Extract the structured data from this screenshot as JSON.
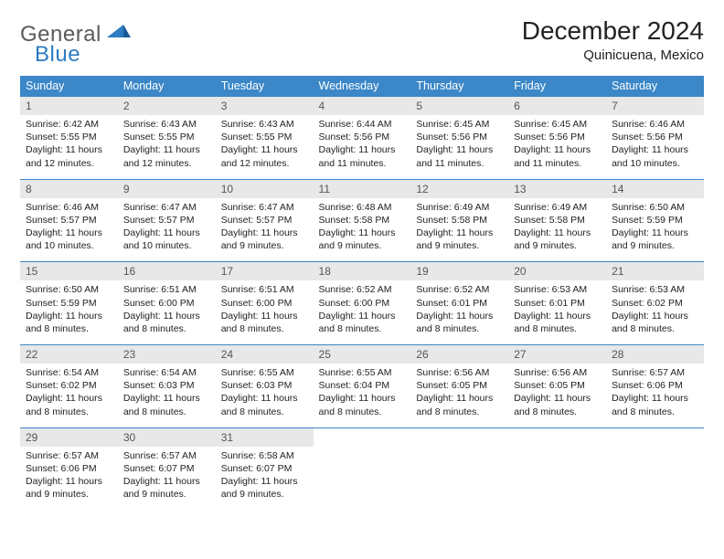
{
  "logo": {
    "text1": "General",
    "text2": "Blue"
  },
  "title": "December 2024",
  "location": "Quinicuena, Mexico",
  "colors": {
    "header_bg": "#3b87c8",
    "header_text": "#ffffff",
    "daynum_bg": "#e8e8e8",
    "daynum_text": "#555555",
    "row_border": "#3b87c8",
    "logo_gray": "#5a5a5a",
    "logo_blue": "#2d7bc0"
  },
  "day_headers": [
    "Sunday",
    "Monday",
    "Tuesday",
    "Wednesday",
    "Thursday",
    "Friday",
    "Saturday"
  ],
  "weeks": [
    [
      {
        "n": "1",
        "sr": "Sunrise: 6:42 AM",
        "ss": "Sunset: 5:55 PM",
        "d1": "Daylight: 11 hours",
        "d2": "and 12 minutes."
      },
      {
        "n": "2",
        "sr": "Sunrise: 6:43 AM",
        "ss": "Sunset: 5:55 PM",
        "d1": "Daylight: 11 hours",
        "d2": "and 12 minutes."
      },
      {
        "n": "3",
        "sr": "Sunrise: 6:43 AM",
        "ss": "Sunset: 5:55 PM",
        "d1": "Daylight: 11 hours",
        "d2": "and 12 minutes."
      },
      {
        "n": "4",
        "sr": "Sunrise: 6:44 AM",
        "ss": "Sunset: 5:56 PM",
        "d1": "Daylight: 11 hours",
        "d2": "and 11 minutes."
      },
      {
        "n": "5",
        "sr": "Sunrise: 6:45 AM",
        "ss": "Sunset: 5:56 PM",
        "d1": "Daylight: 11 hours",
        "d2": "and 11 minutes."
      },
      {
        "n": "6",
        "sr": "Sunrise: 6:45 AM",
        "ss": "Sunset: 5:56 PM",
        "d1": "Daylight: 11 hours",
        "d2": "and 11 minutes."
      },
      {
        "n": "7",
        "sr": "Sunrise: 6:46 AM",
        "ss": "Sunset: 5:56 PM",
        "d1": "Daylight: 11 hours",
        "d2": "and 10 minutes."
      }
    ],
    [
      {
        "n": "8",
        "sr": "Sunrise: 6:46 AM",
        "ss": "Sunset: 5:57 PM",
        "d1": "Daylight: 11 hours",
        "d2": "and 10 minutes."
      },
      {
        "n": "9",
        "sr": "Sunrise: 6:47 AM",
        "ss": "Sunset: 5:57 PM",
        "d1": "Daylight: 11 hours",
        "d2": "and 10 minutes."
      },
      {
        "n": "10",
        "sr": "Sunrise: 6:47 AM",
        "ss": "Sunset: 5:57 PM",
        "d1": "Daylight: 11 hours",
        "d2": "and 9 minutes."
      },
      {
        "n": "11",
        "sr": "Sunrise: 6:48 AM",
        "ss": "Sunset: 5:58 PM",
        "d1": "Daylight: 11 hours",
        "d2": "and 9 minutes."
      },
      {
        "n": "12",
        "sr": "Sunrise: 6:49 AM",
        "ss": "Sunset: 5:58 PM",
        "d1": "Daylight: 11 hours",
        "d2": "and 9 minutes."
      },
      {
        "n": "13",
        "sr": "Sunrise: 6:49 AM",
        "ss": "Sunset: 5:58 PM",
        "d1": "Daylight: 11 hours",
        "d2": "and 9 minutes."
      },
      {
        "n": "14",
        "sr": "Sunrise: 6:50 AM",
        "ss": "Sunset: 5:59 PM",
        "d1": "Daylight: 11 hours",
        "d2": "and 9 minutes."
      }
    ],
    [
      {
        "n": "15",
        "sr": "Sunrise: 6:50 AM",
        "ss": "Sunset: 5:59 PM",
        "d1": "Daylight: 11 hours",
        "d2": "and 8 minutes."
      },
      {
        "n": "16",
        "sr": "Sunrise: 6:51 AM",
        "ss": "Sunset: 6:00 PM",
        "d1": "Daylight: 11 hours",
        "d2": "and 8 minutes."
      },
      {
        "n": "17",
        "sr": "Sunrise: 6:51 AM",
        "ss": "Sunset: 6:00 PM",
        "d1": "Daylight: 11 hours",
        "d2": "and 8 minutes."
      },
      {
        "n": "18",
        "sr": "Sunrise: 6:52 AM",
        "ss": "Sunset: 6:00 PM",
        "d1": "Daylight: 11 hours",
        "d2": "and 8 minutes."
      },
      {
        "n": "19",
        "sr": "Sunrise: 6:52 AM",
        "ss": "Sunset: 6:01 PM",
        "d1": "Daylight: 11 hours",
        "d2": "and 8 minutes."
      },
      {
        "n": "20",
        "sr": "Sunrise: 6:53 AM",
        "ss": "Sunset: 6:01 PM",
        "d1": "Daylight: 11 hours",
        "d2": "and 8 minutes."
      },
      {
        "n": "21",
        "sr": "Sunrise: 6:53 AM",
        "ss": "Sunset: 6:02 PM",
        "d1": "Daylight: 11 hours",
        "d2": "and 8 minutes."
      }
    ],
    [
      {
        "n": "22",
        "sr": "Sunrise: 6:54 AM",
        "ss": "Sunset: 6:02 PM",
        "d1": "Daylight: 11 hours",
        "d2": "and 8 minutes."
      },
      {
        "n": "23",
        "sr": "Sunrise: 6:54 AM",
        "ss": "Sunset: 6:03 PM",
        "d1": "Daylight: 11 hours",
        "d2": "and 8 minutes."
      },
      {
        "n": "24",
        "sr": "Sunrise: 6:55 AM",
        "ss": "Sunset: 6:03 PM",
        "d1": "Daylight: 11 hours",
        "d2": "and 8 minutes."
      },
      {
        "n": "25",
        "sr": "Sunrise: 6:55 AM",
        "ss": "Sunset: 6:04 PM",
        "d1": "Daylight: 11 hours",
        "d2": "and 8 minutes."
      },
      {
        "n": "26",
        "sr": "Sunrise: 6:56 AM",
        "ss": "Sunset: 6:05 PM",
        "d1": "Daylight: 11 hours",
        "d2": "and 8 minutes."
      },
      {
        "n": "27",
        "sr": "Sunrise: 6:56 AM",
        "ss": "Sunset: 6:05 PM",
        "d1": "Daylight: 11 hours",
        "d2": "and 8 minutes."
      },
      {
        "n": "28",
        "sr": "Sunrise: 6:57 AM",
        "ss": "Sunset: 6:06 PM",
        "d1": "Daylight: 11 hours",
        "d2": "and 8 minutes."
      }
    ],
    [
      {
        "n": "29",
        "sr": "Sunrise: 6:57 AM",
        "ss": "Sunset: 6:06 PM",
        "d1": "Daylight: 11 hours",
        "d2": "and 9 minutes."
      },
      {
        "n": "30",
        "sr": "Sunrise: 6:57 AM",
        "ss": "Sunset: 6:07 PM",
        "d1": "Daylight: 11 hours",
        "d2": "and 9 minutes."
      },
      {
        "n": "31",
        "sr": "Sunrise: 6:58 AM",
        "ss": "Sunset: 6:07 PM",
        "d1": "Daylight: 11 hours",
        "d2": "and 9 minutes."
      },
      null,
      null,
      null,
      null
    ]
  ]
}
